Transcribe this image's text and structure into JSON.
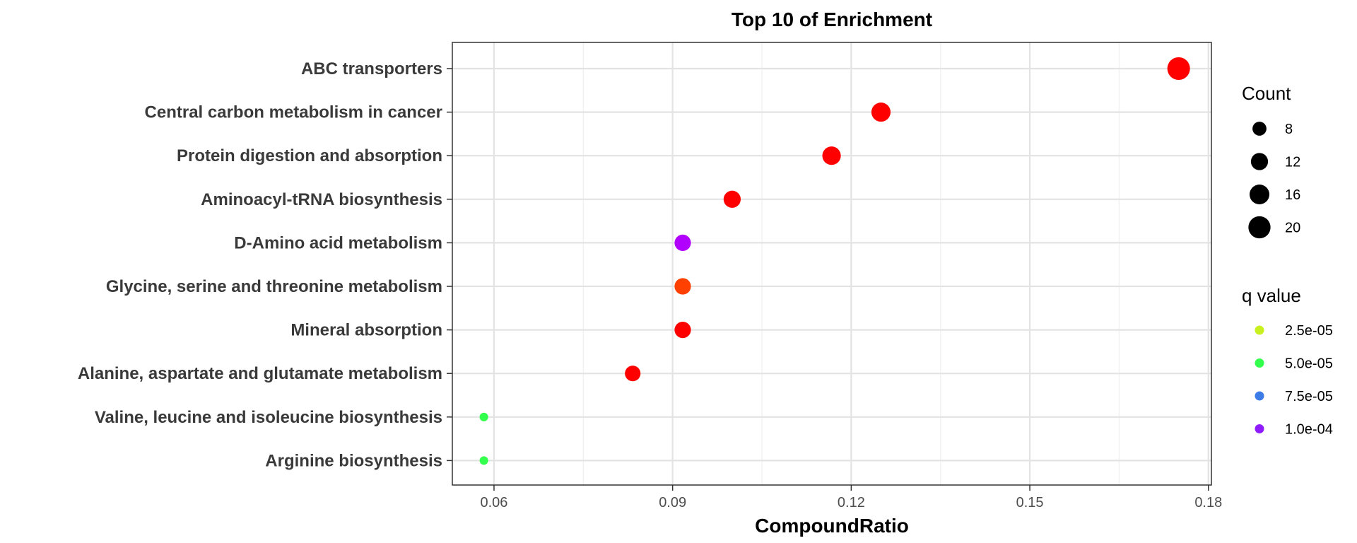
{
  "chart_data": {
    "type": "scatter",
    "title": "Top 10 of Enrichment",
    "xlabel": "CompoundRatio",
    "ylabel": "",
    "xlim": [
      0.053,
      0.1805
    ],
    "xticks": [
      0.06,
      0.09,
      0.12,
      0.15,
      0.18
    ],
    "xtick_labels": [
      "0.06",
      "0.09",
      "0.12",
      "0.15",
      "0.18"
    ],
    "grid": true,
    "categories": [
      "ABC transporters",
      "Central carbon metabolism in cancer",
      "Protein digestion and absorption",
      "Aminoacyl-tRNA biosynthesis",
      "D-Amino acid metabolism",
      "Glycine, serine and threonine metabolism",
      "Mineral absorption",
      "Alanine, aspartate and glutamate metabolism",
      "Valine, leucine and isoleucine biosynthesis",
      "Arginine biosynthesis"
    ],
    "points": [
      {
        "category": "ABC transporters",
        "x": 0.175,
        "count": 21,
        "color": "#ff0000"
      },
      {
        "category": "Central carbon metabolism in cancer",
        "x": 0.125,
        "count": 15,
        "color": "#ff0000"
      },
      {
        "category": "Protein digestion and absorption",
        "x": 0.1167,
        "count": 14,
        "color": "#ff0000"
      },
      {
        "category": "Aminoacyl-tRNA biosynthesis",
        "x": 0.1,
        "count": 12,
        "color": "#ff0000"
      },
      {
        "category": "D-Amino acid metabolism",
        "x": 0.0917,
        "count": 11,
        "color": "#b200ff"
      },
      {
        "category": "Glycine, serine and threonine metabolism",
        "x": 0.0917,
        "count": 11,
        "color": "#ff4000"
      },
      {
        "category": "Mineral absorption",
        "x": 0.0917,
        "count": 11,
        "color": "#ff0000"
      },
      {
        "category": "Alanine, aspartate and glutamate metabolism",
        "x": 0.0833,
        "count": 10,
        "color": "#ff0000"
      },
      {
        "category": "Valine, leucine and isoleucine biosynthesis",
        "x": 0.0583,
        "count": 3,
        "color": "#33ff4d"
      },
      {
        "category": "Arginine biosynthesis",
        "x": 0.0583,
        "count": 3,
        "color": "#33ff4d"
      }
    ],
    "legend_count": {
      "title": "Count",
      "placement": "right",
      "items": [
        {
          "label": "8",
          "value": 8
        },
        {
          "label": "12",
          "value": 12
        },
        {
          "label": "16",
          "value": 16
        },
        {
          "label": "20",
          "value": 20
        }
      ]
    },
    "legend_q": {
      "title": "q value",
      "placement": "right",
      "items": [
        {
          "label": "2.5e-05",
          "color": "#c8f01e"
        },
        {
          "label": "5.0e-05",
          "color": "#33ff4d"
        },
        {
          "label": "7.5e-05",
          "color": "#3d7be6"
        },
        {
          "label": "1.0e-04",
          "color": "#8f1cff"
        }
      ]
    }
  }
}
